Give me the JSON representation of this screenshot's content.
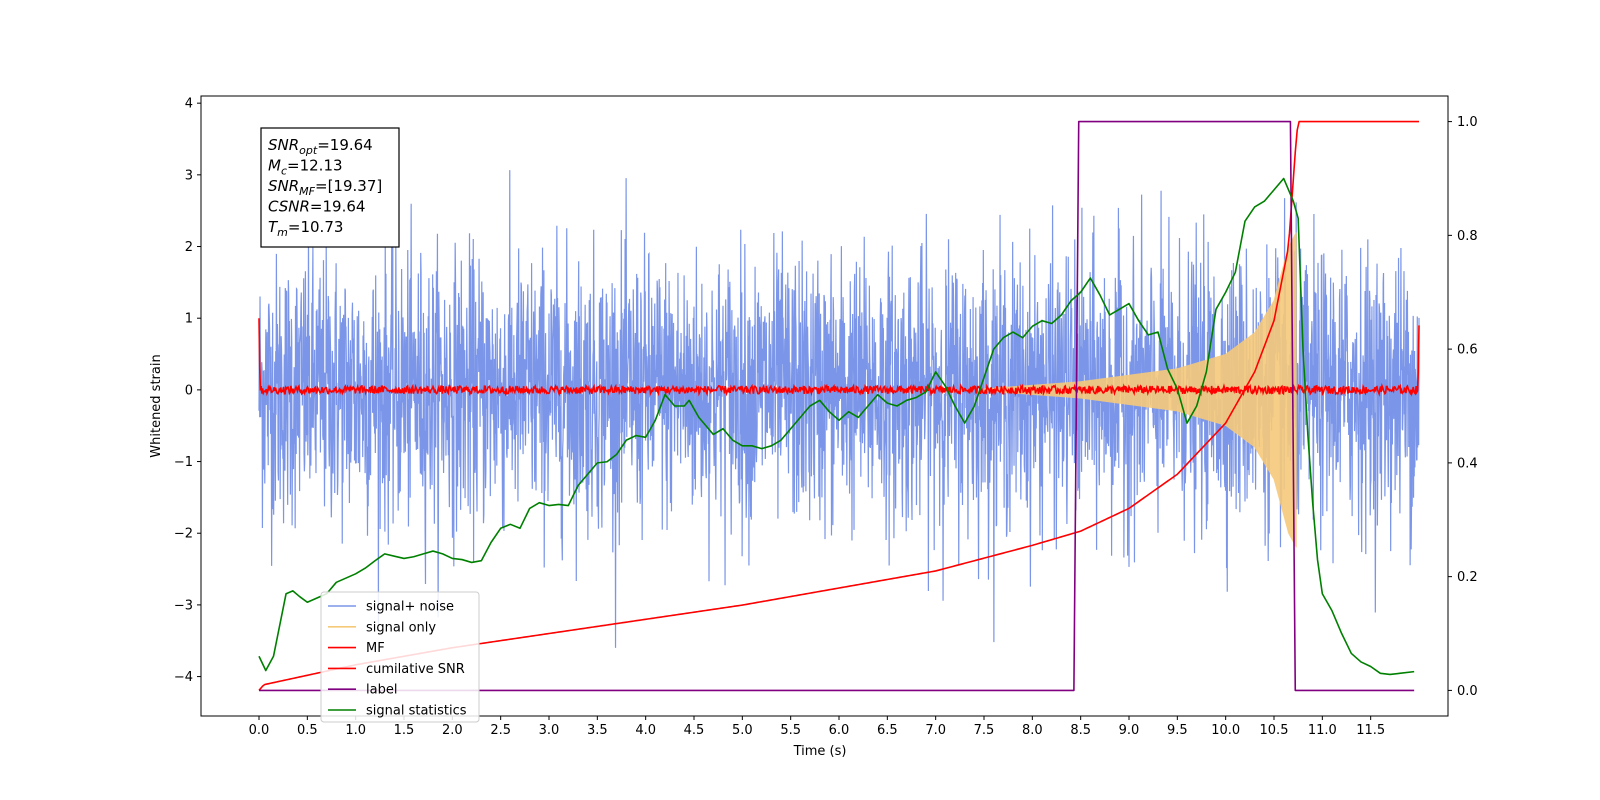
{
  "chart_data": {
    "type": "line",
    "title": "",
    "xlabel": "Time (s)",
    "ylabel": "Whitened strain",
    "xlim": [
      -0.6,
      12.3
    ],
    "ylim": [
      -4.55,
      4.1
    ],
    "y2lim": [
      -0.045,
      1.045
    ],
    "x_ticks": [
      "0.0",
      "0.5",
      "1.0",
      "1.5",
      "2.0",
      "2.5",
      "3.0",
      "3.5",
      "4.0",
      "4.5",
      "5.0",
      "5.5",
      "6.0",
      "6.5",
      "7.0",
      "7.5",
      "8.0",
      "8.5",
      "9.0",
      "9.5",
      "10.0",
      "10.5",
      "11.0",
      "11.5"
    ],
    "y_ticks": [
      "4",
      "3",
      "2",
      "1",
      "0",
      "−1",
      "−2",
      "−3",
      "−4"
    ],
    "y2_ticks": [
      "1.0",
      "0.8",
      "0.6",
      "0.4",
      "0.2",
      "0.0"
    ],
    "grid": false,
    "legend_position": "lower-left",
    "annotation_box": {
      "lines": [
        {
          "main": "SNR",
          "sub": "opt",
          "value": "=19.64"
        },
        {
          "main": "M",
          "sub": "c",
          "value": "=12.13"
        },
        {
          "main": "SNR",
          "sub": "MF",
          "value": "=[19.37]"
        },
        {
          "main": "CSNR",
          "sub": "",
          "value": "=19.64"
        },
        {
          "main": "T",
          "sub": "m",
          "value": "=10.73"
        }
      ]
    },
    "series": [
      {
        "name": "signal+ noise",
        "color": "#7b96e8",
        "axis": "left",
        "x_range": [
          0.0,
          12.0
        ],
        "amplitude_typical": 1.3,
        "amplitude_peak": 3.6
      },
      {
        "name": "signal only",
        "color": "#f5c97a",
        "axis": "left",
        "x_range": [
          7.5,
          10.73
        ],
        "envelope": {
          "x": [
            7.5,
            8.5,
            9.5,
            10.0,
            10.3,
            10.5,
            10.65,
            10.73
          ],
          "y": [
            0.02,
            0.12,
            0.3,
            0.5,
            0.8,
            1.25,
            2.0,
            2.2
          ]
        }
      },
      {
        "name": "MF",
        "color": "#ff0000",
        "axis": "left",
        "x_range": [
          0.0,
          12.0
        ],
        "start_value": 1.0,
        "end_value": 0.9,
        "noise_amplitude": 0.08
      },
      {
        "name": "cumilative SNR",
        "color": "#ff0000",
        "axis": "right",
        "x": [
          0.0,
          0.05,
          1.0,
          2.0,
          3.0,
          4.0,
          5.0,
          6.0,
          7.0,
          8.0,
          8.5,
          9.0,
          9.5,
          10.0,
          10.3,
          10.5,
          10.65,
          10.73,
          10.75,
          12.0
        ],
        "y": [
          0.0,
          0.01,
          0.045,
          0.075,
          0.1,
          0.125,
          0.15,
          0.18,
          0.21,
          0.255,
          0.28,
          0.32,
          0.38,
          0.47,
          0.56,
          0.65,
          0.78,
          0.97,
          1.0,
          1.0
        ]
      },
      {
        "name": "label",
        "color": "#800080",
        "axis": "right",
        "x": [
          0.0,
          8.43,
          8.48,
          10.67,
          10.72,
          11.0,
          11.95
        ],
        "y": [
          0.0,
          0.0,
          1.0,
          1.0,
          0.0,
          0.0,
          0.0
        ]
      },
      {
        "name": "signal statistics",
        "color": "#008000",
        "axis": "right",
        "x": [
          0.0,
          0.07,
          0.15,
          0.28,
          0.35,
          0.42,
          0.5,
          0.7,
          0.8,
          1.0,
          1.1,
          1.2,
          1.3,
          1.4,
          1.5,
          1.6,
          1.7,
          1.8,
          1.9,
          2.0,
          2.1,
          2.2,
          2.3,
          2.4,
          2.5,
          2.6,
          2.7,
          2.8,
          2.9,
          3.0,
          3.1,
          3.2,
          3.3,
          3.4,
          3.5,
          3.6,
          3.7,
          3.8,
          3.9,
          4.0,
          4.1,
          4.2,
          4.3,
          4.4,
          4.45,
          4.55,
          4.65,
          4.7,
          4.8,
          4.9,
          5.0,
          5.1,
          5.2,
          5.3,
          5.4,
          5.5,
          5.6,
          5.7,
          5.8,
          5.9,
          6.0,
          6.1,
          6.2,
          6.3,
          6.4,
          6.5,
          6.6,
          6.7,
          6.8,
          6.9,
          7.0,
          7.1,
          7.2,
          7.3,
          7.4,
          7.5,
          7.6,
          7.7,
          7.8,
          7.9,
          8.0,
          8.1,
          8.2,
          8.3,
          8.4,
          8.5,
          8.6,
          8.7,
          8.8,
          8.9,
          9.0,
          9.1,
          9.2,
          9.3,
          9.4,
          9.5,
          9.6,
          9.7,
          9.8,
          9.9,
          10.0,
          10.1,
          10.2,
          10.3,
          10.4,
          10.5,
          10.6,
          10.7,
          10.75,
          10.8,
          10.85,
          10.9,
          10.95,
          11.0,
          11.05,
          11.1,
          11.2,
          11.3,
          11.4,
          11.5,
          11.6,
          11.7,
          11.8,
          11.95
        ],
        "y": [
          0.06,
          0.035,
          0.06,
          0.17,
          0.175,
          0.165,
          0.155,
          0.17,
          0.19,
          0.205,
          0.215,
          0.228,
          0.24,
          0.236,
          0.232,
          0.235,
          0.24,
          0.245,
          0.24,
          0.232,
          0.23,
          0.225,
          0.228,
          0.26,
          0.285,
          0.292,
          0.285,
          0.32,
          0.33,
          0.325,
          0.327,
          0.325,
          0.36,
          0.38,
          0.4,
          0.402,
          0.415,
          0.44,
          0.448,
          0.445,
          0.475,
          0.52,
          0.5,
          0.5,
          0.51,
          0.48,
          0.46,
          0.45,
          0.46,
          0.44,
          0.43,
          0.43,
          0.425,
          0.43,
          0.44,
          0.46,
          0.48,
          0.5,
          0.51,
          0.49,
          0.475,
          0.49,
          0.48,
          0.5,
          0.52,
          0.505,
          0.5,
          0.51,
          0.515,
          0.525,
          0.56,
          0.535,
          0.5,
          0.47,
          0.5,
          0.55,
          0.6,
          0.62,
          0.63,
          0.62,
          0.64,
          0.65,
          0.645,
          0.66,
          0.685,
          0.7,
          0.725,
          0.695,
          0.66,
          0.67,
          0.68,
          0.65,
          0.625,
          0.63,
          0.565,
          0.53,
          0.47,
          0.5,
          0.56,
          0.67,
          0.7,
          0.735,
          0.825,
          0.85,
          0.86,
          0.88,
          0.9,
          0.86,
          0.83,
          0.6,
          0.45,
          0.33,
          0.23,
          0.17,
          0.155,
          0.14,
          0.1,
          0.065,
          0.05,
          0.042,
          0.03,
          0.028,
          0.03,
          0.033
        ]
      }
    ]
  }
}
